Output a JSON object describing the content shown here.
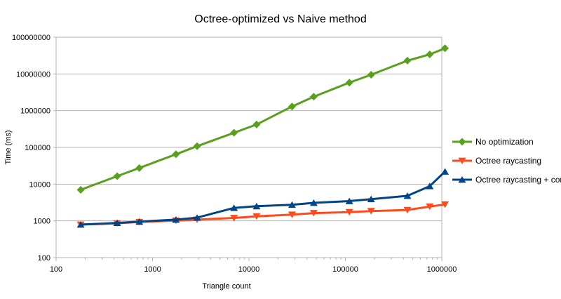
{
  "chart_data": {
    "type": "line",
    "title": "Octree-optimized vs Naive method",
    "xlabel": "Triangle count",
    "ylabel": "Time (ms)",
    "x_scale": "log",
    "y_scale": "log",
    "xlim": [
      100,
      1000000
    ],
    "ylim": [
      100,
      100000000
    ],
    "x_ticks": [
      "100",
      "1000",
      "10000",
      "100000",
      "1000000"
    ],
    "y_ticks": [
      "100",
      "1000",
      "10000",
      "100000",
      "1000000",
      "10000000",
      "100000000"
    ],
    "grid": "horizontal",
    "legend_position": "right",
    "series": [
      {
        "name": "No optimization",
        "color": "#5a9f1e",
        "marker": "diamond",
        "x": [
          180,
          430,
          730,
          1750,
          2900,
          7000,
          12000,
          28000,
          47000,
          110000,
          185000,
          440000,
          750000,
          1080000
        ],
        "y": [
          7000,
          16500,
          27500,
          65000,
          108000,
          250000,
          420000,
          1300000,
          2400000,
          5800000,
          9500000,
          23000000,
          34000000,
          50000000
        ]
      },
      {
        "name": "Octree raycasting",
        "color": "#ff4a1c",
        "marker": "triangle-down",
        "x": [
          180,
          430,
          730,
          1750,
          2900,
          7000,
          12000,
          28000,
          47000,
          110000,
          185000,
          440000,
          750000,
          1080000
        ],
        "y": [
          790,
          860,
          930,
          1020,
          1080,
          1200,
          1330,
          1480,
          1630,
          1730,
          1850,
          1980,
          2450,
          2800
        ]
      },
      {
        "name": "Octree raycasting + construction time",
        "color": "#004586",
        "marker": "triangle-up",
        "x": [
          180,
          430,
          730,
          1750,
          2900,
          7000,
          12000,
          28000,
          47000,
          110000,
          185000,
          440000,
          750000,
          1080000
        ],
        "y": [
          790,
          880,
          950,
          1080,
          1220,
          2250,
          2500,
          2750,
          3100,
          3450,
          3900,
          4800,
          8800,
          22000
        ]
      }
    ]
  }
}
